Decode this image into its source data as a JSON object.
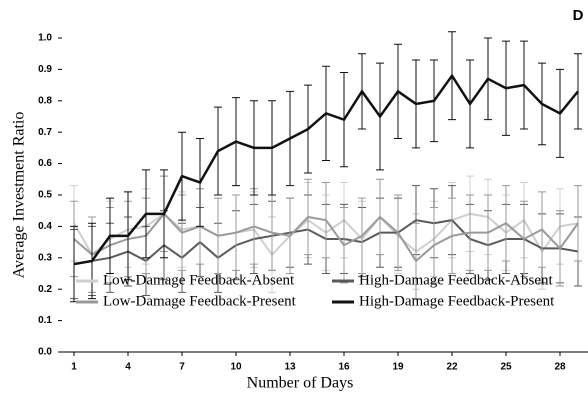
{
  "chart_data": {
    "type": "line",
    "panel_label": "D",
    "xlabel": "Number of Days",
    "ylabel": "Average Investment Ratio",
    "x": [
      1,
      2,
      3,
      4,
      5,
      6,
      7,
      8,
      9,
      10,
      11,
      12,
      13,
      14,
      15,
      16,
      17,
      18,
      19,
      20,
      21,
      22,
      23,
      24,
      25,
      26,
      27,
      28,
      29
    ],
    "xlim": [
      1,
      29
    ],
    "xticks": [
      1,
      4,
      7,
      10,
      13,
      16,
      19,
      22,
      25,
      28
    ],
    "ylim": [
      0,
      1
    ],
    "yticks": [
      {
        "value": 0,
        "label": "0.0"
      },
      0.1,
      0.2,
      0.3,
      0.4,
      0.5,
      0.6,
      0.7,
      0.8,
      0.9,
      {
        "value": 1,
        "label": "1.0"
      }
    ],
    "series": [
      {
        "name": "Low-Damage Feedback-Absent",
        "color": "#cfcfcf",
        "values": [
          0.41,
          0.31,
          0.36,
          0.39,
          0.4,
          0.44,
          0.39,
          0.4,
          0.37,
          0.38,
          0.39,
          0.31,
          0.37,
          0.42,
          0.38,
          0.42,
          0.36,
          0.43,
          0.37,
          0.32,
          0.36,
          0.42,
          0.44,
          0.43,
          0.38,
          0.42,
          0.32,
          0.4,
          0.41
        ],
        "errors": [
          0.12,
          0.12,
          0.12,
          0.12,
          0.12,
          0.12,
          0.12,
          0.12,
          0.12,
          0.12,
          0.12,
          0.12,
          0.12,
          0.12,
          0.12,
          0.12,
          0.12,
          0.12,
          0.12,
          0.12,
          0.12,
          0.12,
          0.12,
          0.12,
          0.12,
          0.12,
          0.12,
          0.12,
          0.12
        ]
      },
      {
        "name": "High-Damage Feedback-Absent",
        "color": "#5a5a5a",
        "values": [
          0.28,
          0.29,
          0.3,
          0.32,
          0.29,
          0.34,
          0.3,
          0.35,
          0.3,
          0.34,
          0.36,
          0.37,
          0.38,
          0.39,
          0.36,
          0.36,
          0.35,
          0.38,
          0.38,
          0.42,
          0.41,
          0.42,
          0.36,
          0.34,
          0.36,
          0.36,
          0.33,
          0.33,
          0.32
        ],
        "errors": [
          0.11,
          0.11,
          0.11,
          0.11,
          0.11,
          0.11,
          0.11,
          0.11,
          0.11,
          0.11,
          0.11,
          0.11,
          0.11,
          0.11,
          0.11,
          0.11,
          0.11,
          0.11,
          0.11,
          0.11,
          0.11,
          0.11,
          0.11,
          0.11,
          0.11,
          0.11,
          0.11,
          0.11,
          0.11
        ]
      },
      {
        "name": "Low-Damage Feedback-Present",
        "color": "#9a9a9a",
        "values": [
          0.36,
          0.31,
          0.34,
          0.36,
          0.37,
          0.44,
          0.38,
          0.4,
          0.37,
          0.38,
          0.4,
          0.38,
          0.37,
          0.43,
          0.42,
          0.34,
          0.37,
          0.43,
          0.38,
          0.29,
          0.34,
          0.37,
          0.38,
          0.38,
          0.41,
          0.36,
          0.39,
          0.33,
          0.41
        ],
        "errors": [
          0.12,
          0.12,
          0.12,
          0.12,
          0.12,
          0.12,
          0.12,
          0.12,
          0.12,
          0.12,
          0.12,
          0.12,
          0.12,
          0.12,
          0.12,
          0.12,
          0.12,
          0.12,
          0.12,
          0.12,
          0.12,
          0.12,
          0.12,
          0.12,
          0.12,
          0.12,
          0.12,
          0.12,
          0.12
        ]
      },
      {
        "name": "High-Damage Feedback-Present",
        "color": "#111111",
        "values": [
          0.28,
          0.29,
          0.37,
          0.37,
          0.44,
          0.44,
          0.56,
          0.54,
          0.64,
          0.67,
          0.65,
          0.65,
          0.68,
          0.71,
          0.76,
          0.74,
          0.83,
          0.75,
          0.83,
          0.79,
          0.8,
          0.88,
          0.79,
          0.87,
          0.84,
          0.85,
          0.79,
          0.76,
          0.83
        ],
        "errors": [
          0.12,
          0.12,
          0.12,
          0.14,
          0.14,
          0.14,
          0.14,
          0.14,
          0.14,
          0.14,
          0.15,
          0.15,
          0.15,
          0.14,
          0.15,
          0.15,
          0.12,
          0.17,
          0.15,
          0.14,
          0.13,
          0.14,
          0.14,
          0.13,
          0.15,
          0.14,
          0.13,
          0.14,
          0.12
        ]
      }
    ]
  }
}
